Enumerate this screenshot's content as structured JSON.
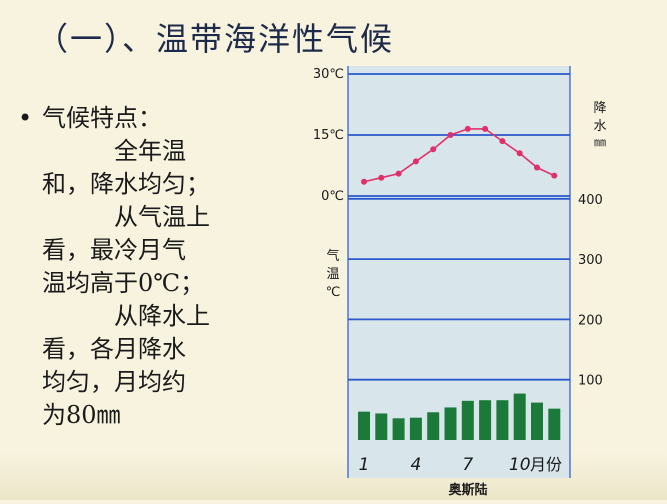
{
  "slide": {
    "title": "（一）、温带海洋性气候",
    "bullet_marker": "•",
    "bullet_heading": "气候特点：",
    "para1": [
      "全年温",
      "和，降水均匀；"
    ],
    "para2": [
      "从气温上",
      "看，最冷月气",
      "温均高于0℃；"
    ],
    "para3": [
      "从降水上",
      "看，各月降水",
      "均匀，月均约",
      "为80㎜"
    ]
  },
  "chart_data": {
    "type": "bar+line",
    "title": "",
    "caption": "奥斯陆",
    "x_tick_labels": [
      "1",
      "4",
      "7",
      "10",
      "月份"
    ],
    "x_ticks_at_month": [
      1,
      4,
      7,
      10
    ],
    "months": [
      1,
      2,
      3,
      4,
      5,
      6,
      7,
      8,
      9,
      10,
      11,
      12
    ],
    "temperature": {
      "axis_label": "气温℃",
      "ticks": [
        "30℃",
        "15℃",
        "0℃"
      ],
      "tick_values": [
        30,
        15,
        0
      ],
      "range": [
        0,
        30
      ],
      "values": [
        3.5,
        4.5,
        5.5,
        8.5,
        11.5,
        15,
        16.5,
        16.5,
        13.5,
        10.5,
        7,
        5
      ]
    },
    "precipitation": {
      "axis_label": "降水㎜",
      "ticks": [
        "400",
        "300",
        "200",
        "100"
      ],
      "tick_values": [
        400,
        300,
        200,
        100
      ],
      "range": [
        0,
        400
      ],
      "values": [
        47,
        44,
        36,
        37,
        46,
        54,
        65,
        66,
        66,
        77,
        62,
        52
      ]
    },
    "colors": {
      "background": "#d8e6ec",
      "grid": "#2b58cc",
      "temperature_line": "#e0306a",
      "precip_bar": "#1b7a3a"
    }
  }
}
